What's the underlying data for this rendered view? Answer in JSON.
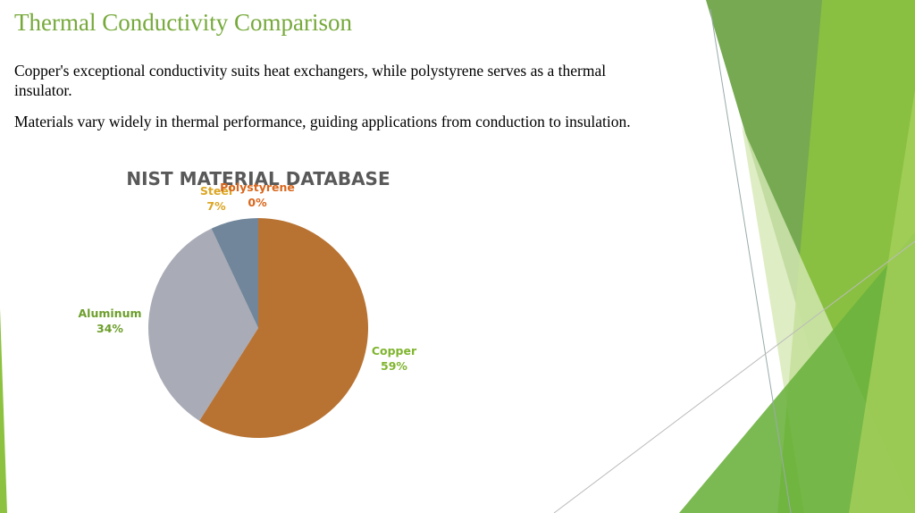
{
  "slide": {
    "title": "Thermal Conductivity Comparison",
    "paragraphs": [
      "Copper's exceptional conductivity suits heat exchangers, while polystyrene serves as a thermal insulator.",
      "Materials vary widely in thermal performance, guiding applications from conduction to insulation."
    ]
  },
  "chart_data": {
    "type": "pie",
    "title": "NIST MATERIAL DATABASE",
    "categories": [
      "Copper",
      "Aluminum",
      "Steel",
      "Polystyrene"
    ],
    "values": [
      59,
      34,
      7,
      0
    ],
    "value_labels": [
      "59%",
      "34%",
      "7%",
      "0%"
    ],
    "colors": [
      "#b87333",
      "#a9abb6",
      "#71869a",
      "#e07b2a"
    ],
    "label_colors": [
      "#7fb52e",
      "#6c9e2b",
      "#dba520",
      "#d9661c"
    ]
  }
}
